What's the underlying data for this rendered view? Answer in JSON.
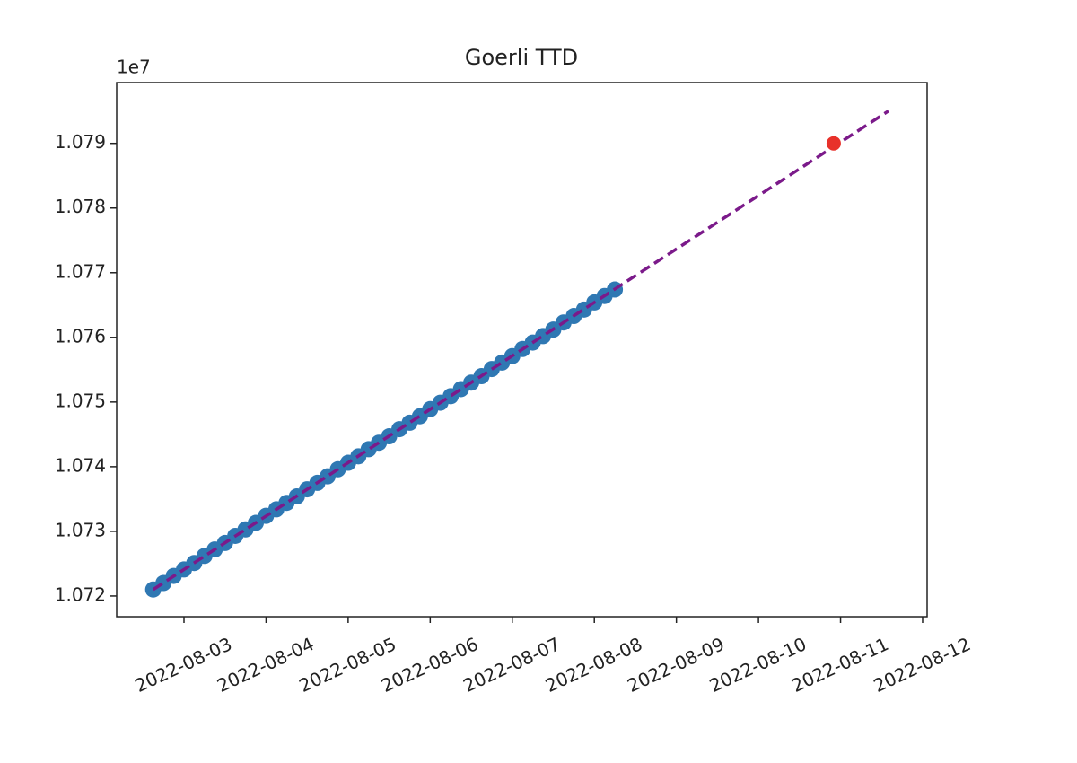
{
  "chart_data": {
    "type": "scatter",
    "title": "Goerli TTD",
    "y_offset_label": "1e7",
    "xlim": [
      "2022-08-02T04:19",
      "2022-08-12T01:19"
    ],
    "xticks": [
      "2022-08-03",
      "2022-08-04",
      "2022-08-05",
      "2022-08-06",
      "2022-08-07",
      "2022-08-08",
      "2022-08-09",
      "2022-08-10",
      "2022-08-11",
      "2022-08-12"
    ],
    "ylim": [
      1.07168,
      1.07994
    ],
    "yticks": [
      1.072,
      1.073,
      1.074,
      1.075,
      1.076,
      1.077,
      1.078,
      1.079
    ],
    "grid": false,
    "series": [
      {
        "type": "scatter",
        "color": "#2f78b3",
        "x": [
          "2022-08-02T15:00",
          "2022-08-02T18:00",
          "2022-08-02T21:00",
          "2022-08-03T00:00",
          "2022-08-03T03:00",
          "2022-08-03T06:00",
          "2022-08-03T09:00",
          "2022-08-03T12:00",
          "2022-08-03T15:00",
          "2022-08-03T18:00",
          "2022-08-03T21:00",
          "2022-08-04T00:00",
          "2022-08-04T03:00",
          "2022-08-04T06:00",
          "2022-08-04T09:00",
          "2022-08-04T12:00",
          "2022-08-04T15:00",
          "2022-08-04T18:00",
          "2022-08-04T21:00",
          "2022-08-05T00:00",
          "2022-08-05T03:00",
          "2022-08-05T06:00",
          "2022-08-05T09:00",
          "2022-08-05T12:00",
          "2022-08-05T15:00",
          "2022-08-05T18:00",
          "2022-08-05T21:00",
          "2022-08-06T00:00",
          "2022-08-06T03:00",
          "2022-08-06T06:00",
          "2022-08-06T09:00",
          "2022-08-06T12:00",
          "2022-08-06T15:00",
          "2022-08-06T18:00",
          "2022-08-06T21:00",
          "2022-08-07T00:00",
          "2022-08-07T03:00",
          "2022-08-07T06:00",
          "2022-08-07T09:00",
          "2022-08-07T12:00",
          "2022-08-07T15:00",
          "2022-08-07T18:00",
          "2022-08-07T21:00",
          "2022-08-08T00:00",
          "2022-08-08T03:00",
          "2022-08-08T06:00"
        ],
        "values": [
          1.0721,
          1.0722,
          1.07231,
          1.07241,
          1.07251,
          1.07262,
          1.07272,
          1.07282,
          1.07293,
          1.07303,
          1.07313,
          1.07324,
          1.07334,
          1.07344,
          1.07354,
          1.07365,
          1.07375,
          1.07385,
          1.07396,
          1.07406,
          1.07416,
          1.07427,
          1.07437,
          1.07447,
          1.07458,
          1.07468,
          1.07478,
          1.07489,
          1.07499,
          1.07509,
          1.0752,
          1.0753,
          1.0754,
          1.07551,
          1.07561,
          1.07571,
          1.07582,
          1.07592,
          1.07602,
          1.07612,
          1.07623,
          1.07633,
          1.07643,
          1.07654,
          1.07664,
          1.07674
        ]
      },
      {
        "type": "line",
        "color": "#7b1a8a",
        "dashed": true,
        "x": [
          "2022-08-02T15:00",
          "2022-08-11T14:00"
        ],
        "values": [
          1.0721,
          1.0795
        ]
      },
      {
        "type": "scatter",
        "color": "#e8312a",
        "x": [
          "2022-08-10T22:00"
        ],
        "values": [
          1.079
        ]
      }
    ]
  }
}
